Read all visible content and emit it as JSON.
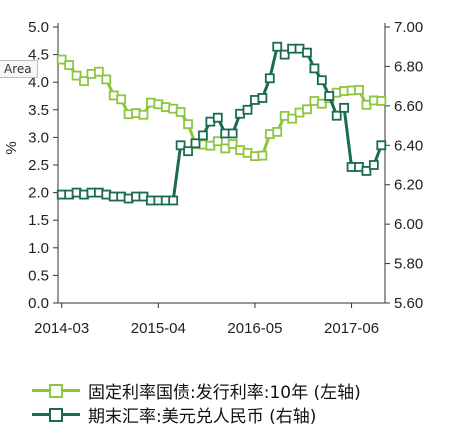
{
  "colors": {
    "bond": "#8cc63f",
    "fx": "#1a6b50",
    "axis": "#333333"
  },
  "tooltip": "Area",
  "chart_data": {
    "type": "line",
    "y_left": {
      "label": "%",
      "range": [
        0,
        5
      ],
      "ticks": [
        "0.0",
        "0.5",
        "1.0",
        "1.5",
        "2.0",
        "2.5",
        "3.0",
        "3.5",
        "4.0",
        "4.5",
        "5.0"
      ]
    },
    "y_right": {
      "range": [
        5.6,
        7.0
      ],
      "ticks": [
        "5.60",
        "5.80",
        "6.00",
        "6.20",
        "6.40",
        "6.60",
        "6.80",
        "7.00"
      ]
    },
    "x_ticks": [
      "2014-03",
      "2015-04",
      "2016-05",
      "2017-06"
    ],
    "x_tick_index": [
      0,
      13,
      26,
      39
    ],
    "series": [
      {
        "name": "固定利率国债:发行利率:10年 (左轴)",
        "axis": "left",
        "color": "#8cc63f",
        "values": [
          4.41,
          4.31,
          4.12,
          4.02,
          4.15,
          4.19,
          4.05,
          3.76,
          3.69,
          3.42,
          3.44,
          3.41,
          3.63,
          3.6,
          3.55,
          3.52,
          3.46,
          3.24,
          2.88,
          2.87,
          2.85,
          2.93,
          2.8,
          2.88,
          2.77,
          2.72,
          2.66,
          2.67,
          3.06,
          3.1,
          3.39,
          3.34,
          3.45,
          3.51,
          3.66,
          3.61,
          3.71,
          3.81,
          3.84,
          3.85,
          3.86,
          3.59,
          3.67,
          3.66
        ]
      },
      {
        "name": "期末汇率:美元兑人民币 (右轴)",
        "axis": "right",
        "color": "#1a6b50",
        "values": [
          6.15,
          6.15,
          6.16,
          6.15,
          6.16,
          6.16,
          6.15,
          6.14,
          6.14,
          6.13,
          6.14,
          6.14,
          6.12,
          6.12,
          6.12,
          6.12,
          6.4,
          6.37,
          6.41,
          6.45,
          6.52,
          6.54,
          6.46,
          6.46,
          6.56,
          6.58,
          6.63,
          6.64,
          6.74,
          6.9,
          6.86,
          6.89,
          6.89,
          6.87,
          6.79,
          6.73,
          6.65,
          6.55,
          6.59,
          6.29,
          6.29,
          6.27,
          6.3,
          6.4
        ]
      }
    ]
  },
  "legend": [
    {
      "label": "固定利率国债:发行利率:10年 (左轴)",
      "color": "#8cc63f"
    },
    {
      "label": "期末汇率:美元兑人民币 (右轴)",
      "color": "#1a6b50"
    }
  ]
}
